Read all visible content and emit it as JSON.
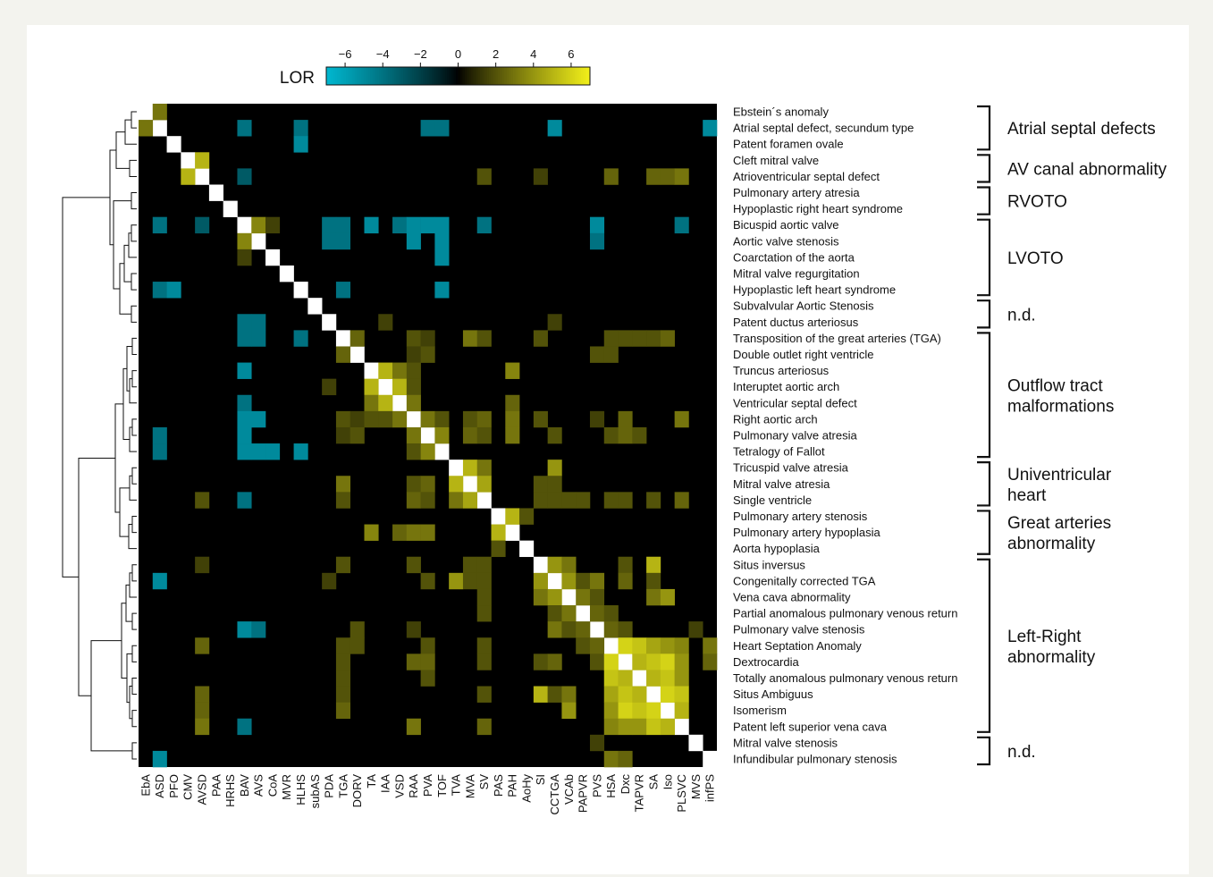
{
  "chart_data": {
    "type": "heatmap",
    "colorbar": {
      "title": "LOR",
      "ticks": [
        "−6",
        "−4",
        "−2",
        "0",
        "2",
        "4",
        "6"
      ],
      "range": [
        -7,
        7
      ],
      "colors": {
        "negative": "#00b8d0",
        "zero": "#000000",
        "positive": "#f2f01a",
        "diagonal": "#ffffff"
      }
    },
    "columns": [
      "EbA",
      "ASD",
      "PFO",
      "CMV",
      "AVSD",
      "PAA",
      "HRHS",
      "BAV",
      "AVS",
      "CoA",
      "MVR",
      "HLHS",
      "subAS",
      "PDA",
      "TGA",
      "DORV",
      "TA",
      "IAA",
      "VSD",
      "RAA",
      "PVA",
      "TOF",
      "TVA",
      "MVA",
      "SV",
      "PAS",
      "PAH",
      "AoHy",
      "SI",
      "CCTGA",
      "VCAb",
      "PAPVR",
      "PVS",
      "HSA",
      "Dxc",
      "TAPVR",
      "SA",
      "Iso",
      "PLSVC",
      "MVS",
      "infPS"
    ],
    "rows": [
      "Ebstein´s anomaly",
      "Atrial septal defect, secundum type",
      "Patent foramen ovale",
      "Cleft mitral valve",
      "Atrioventricular septal defect",
      "Pulmonary artery atresia",
      "Hypoplastic right heart syndrome",
      "Bicuspid aortic valve",
      "Aortic valve stenosis",
      "Coarctation of the aorta",
      "Mitral valve regurgitation",
      "Hypoplastic left heart syndrome",
      "Subvalvular Aortic Stenosis",
      "Patent ductus arteriosus",
      "Transposition of the great arteries (TGA)",
      "Double outlet right ventricle",
      "Truncus arteriosus",
      "Interuptet aortic arch",
      "Ventricular septal defect",
      "Right aortic arch",
      "Pulmonary valve atresia",
      "Tetralogy of Fallot",
      "Tricuspid valve atresia",
      "Mitral valve atresia",
      "Single ventricle",
      "Pulmonary artery stenosis",
      "Pulmonary artery hypoplasia",
      "Aorta hypoplasia",
      "Situs inversus",
      "Congenitally corrected TGA",
      "Vena cava abnormality",
      "Partial anomalous pulmonary venous return",
      "Pulmonary valve stenosis",
      "Heart Septation Anomaly",
      "Dextrocardia",
      "Totally anomalous pulmonary venous return",
      "Situs Ambiguus",
      "Isomerism",
      "Patent left superior vena cava",
      "Mitral valve stenosis",
      "Infundibular pulmonary stenosis"
    ],
    "groups": [
      {
        "label": [
          "Atrial septal defects"
        ],
        "rows": [
          0,
          2
        ]
      },
      {
        "label": [
          "AV canal abnormality"
        ],
        "rows": [
          3,
          4
        ]
      },
      {
        "label": [
          "RVOTO"
        ],
        "rows": [
          5,
          6
        ]
      },
      {
        "label": [
          "LVOTO"
        ],
        "rows": [
          7,
          11
        ]
      },
      {
        "label": [
          "n.d."
        ],
        "rows": [
          12,
          13
        ]
      },
      {
        "label": [
          "Outflow tract",
          "malformations"
        ],
        "rows": [
          14,
          21
        ]
      },
      {
        "label": [
          "Univentricular",
          "heart"
        ],
        "rows": [
          22,
          24
        ]
      },
      {
        "label": [
          "Great arteries",
          "abnormality"
        ],
        "rows": [
          25,
          27
        ]
      },
      {
        "label": [
          "Left-Right",
          "abnormality"
        ],
        "rows": [
          28,
          38
        ]
      },
      {
        "label": [
          "n.d."
        ],
        "rows": [
          39,
          40
        ]
      }
    ],
    "values_note": "symmetric matrix of log odds ratios; unlisted off-diagonal pairs are 0",
    "cells": [
      [
        0,
        1,
        3
      ],
      [
        1,
        7,
        -4
      ],
      [
        1,
        11,
        -4
      ],
      [
        1,
        20,
        -4
      ],
      [
        1,
        21,
        -4
      ],
      [
        1,
        29,
        -5
      ],
      [
        1,
        40,
        -5
      ],
      [
        2,
        11,
        -5
      ],
      [
        3,
        4,
        5
      ],
      [
        4,
        7,
        -3
      ],
      [
        4,
        24,
        2
      ],
      [
        4,
        28,
        1.5
      ],
      [
        4,
        33,
        2.5
      ],
      [
        4,
        36,
        2.5
      ],
      [
        4,
        37,
        2.5
      ],
      [
        4,
        38,
        3
      ],
      [
        7,
        8,
        3.5
      ],
      [
        7,
        9,
        1.5
      ],
      [
        7,
        13,
        -4
      ],
      [
        7,
        14,
        -4
      ],
      [
        7,
        16,
        -5
      ],
      [
        7,
        18,
        -4
      ],
      [
        7,
        19,
        -5
      ],
      [
        7,
        20,
        -5
      ],
      [
        7,
        21,
        -5
      ],
      [
        7,
        24,
        -4
      ],
      [
        7,
        32,
        -5
      ],
      [
        7,
        38,
        -4
      ],
      [
        8,
        13,
        -4
      ],
      [
        8,
        14,
        -4
      ],
      [
        8,
        19,
        -5
      ],
      [
        8,
        21,
        -5
      ],
      [
        8,
        32,
        -4
      ],
      [
        9,
        21,
        -5
      ],
      [
        11,
        14,
        -4
      ],
      [
        11,
        21,
        -5
      ],
      [
        13,
        17,
        1.5
      ],
      [
        13,
        29,
        1.5
      ],
      [
        14,
        15,
        2.5
      ],
      [
        14,
        19,
        2
      ],
      [
        14,
        20,
        1.5
      ],
      [
        14,
        23,
        3
      ],
      [
        14,
        24,
        2
      ],
      [
        14,
        28,
        2
      ],
      [
        14,
        33,
        2
      ],
      [
        14,
        34,
        2
      ],
      [
        14,
        35,
        2
      ],
      [
        14,
        36,
        2
      ],
      [
        14,
        37,
        2.5
      ],
      [
        15,
        19,
        1.5
      ],
      [
        15,
        20,
        2
      ],
      [
        15,
        32,
        2
      ],
      [
        15,
        33,
        2
      ],
      [
        16,
        17,
        5
      ],
      [
        16,
        18,
        3
      ],
      [
        16,
        19,
        2
      ],
      [
        16,
        26,
        3.5
      ],
      [
        17,
        18,
        5
      ],
      [
        17,
        19,
        2
      ],
      [
        18,
        19,
        3
      ],
      [
        18,
        26,
        2.5
      ],
      [
        19,
        20,
        3
      ],
      [
        19,
        21,
        2
      ],
      [
        19,
        23,
        2
      ],
      [
        19,
        24,
        2.5
      ],
      [
        19,
        26,
        3
      ],
      [
        19,
        28,
        2
      ],
      [
        19,
        32,
        1.5
      ],
      [
        19,
        34,
        2.5
      ],
      [
        19,
        38,
        3
      ],
      [
        20,
        21,
        3.5
      ],
      [
        20,
        23,
        2.5
      ],
      [
        20,
        24,
        2
      ],
      [
        20,
        26,
        3
      ],
      [
        20,
        29,
        2
      ],
      [
        20,
        33,
        2
      ],
      [
        20,
        34,
        2.5
      ],
      [
        20,
        35,
        2
      ],
      [
        22,
        23,
        5
      ],
      [
        22,
        24,
        3
      ],
      [
        22,
        29,
        4
      ],
      [
        23,
        24,
        4.5
      ],
      [
        23,
        28,
        2
      ],
      [
        23,
        29,
        2
      ],
      [
        24,
        28,
        2
      ],
      [
        24,
        29,
        2
      ],
      [
        24,
        30,
        2
      ],
      [
        24,
        31,
        2
      ],
      [
        24,
        33,
        2
      ],
      [
        24,
        34,
        2
      ],
      [
        24,
        36,
        2
      ],
      [
        24,
        38,
        2.5
      ],
      [
        25,
        26,
        5
      ],
      [
        25,
        27,
        2
      ],
      [
        28,
        29,
        4
      ],
      [
        28,
        30,
        3
      ],
      [
        28,
        34,
        2
      ],
      [
        28,
        36,
        5
      ],
      [
        29,
        30,
        4
      ],
      [
        29,
        31,
        2
      ],
      [
        29,
        32,
        3
      ],
      [
        29,
        34,
        2.5
      ],
      [
        29,
        36,
        2
      ],
      [
        30,
        31,
        3
      ],
      [
        30,
        32,
        2
      ],
      [
        30,
        36,
        3
      ],
      [
        30,
        37,
        4
      ],
      [
        31,
        32,
        2.5
      ],
      [
        31,
        33,
        2
      ],
      [
        32,
        33,
        2.5
      ],
      [
        32,
        34,
        2
      ],
      [
        32,
        39,
        1.5
      ],
      [
        33,
        34,
        6
      ],
      [
        33,
        35,
        5.5
      ],
      [
        33,
        36,
        4.5
      ],
      [
        33,
        37,
        4
      ],
      [
        33,
        38,
        3.5
      ],
      [
        33,
        40,
        3
      ],
      [
        34,
        35,
        5
      ],
      [
        34,
        36,
        5.5
      ],
      [
        34,
        37,
        6
      ],
      [
        34,
        38,
        4
      ],
      [
        34,
        40,
        2.5
      ],
      [
        35,
        36,
        5
      ],
      [
        35,
        37,
        5.5
      ],
      [
        35,
        38,
        4
      ],
      [
        36,
        37,
        6
      ],
      [
        36,
        38,
        5.5
      ],
      [
        37,
        38,
        5
      ]
    ]
  }
}
